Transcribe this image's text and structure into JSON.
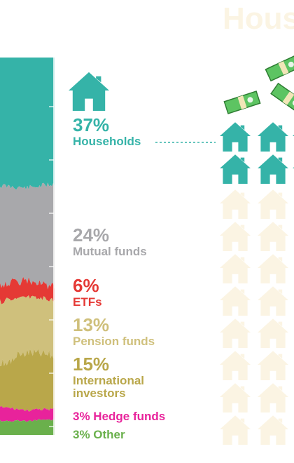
{
  "bg_title": "Hous",
  "colors": {
    "households": "#35b3a8",
    "mutual_funds": "#a8a8ab",
    "etfs": "#e53935",
    "pension": "#cfc07c",
    "international": "#b9a74a",
    "hedge": "#e8239b",
    "other": "#6ab04c",
    "faint_house": "#fbf4e3",
    "cash": "#5dc462"
  },
  "icons": [
    "house-icon",
    "money-bill-icon"
  ],
  "chart_data": {
    "type": "area",
    "stacked": true,
    "series": [
      {
        "name": "Households",
        "share": 37
      },
      {
        "name": "Mutual funds",
        "share": 24
      },
      {
        "name": "ETFs",
        "share": 6
      },
      {
        "name": "Pension funds",
        "share": 13
      },
      {
        "name": "International investors",
        "share": 15
      },
      {
        "name": "Hedge funds",
        "share": 3
      },
      {
        "name": "Other",
        "share": 3
      }
    ]
  },
  "labels": {
    "households": {
      "pct": "37%",
      "name": "Households"
    },
    "mutual_funds": {
      "pct": "24%",
      "name": "Mutual funds"
    },
    "etfs": {
      "pct": "6%",
      "name": "ETFs"
    },
    "pension": {
      "pct": "13%",
      "name": "Pension funds"
    },
    "international": {
      "pct": "15%",
      "name_line1": "International",
      "name_line2": "investors"
    },
    "hedge": {
      "text": "3% Hedge funds"
    },
    "other": {
      "text": "3% Other"
    }
  }
}
